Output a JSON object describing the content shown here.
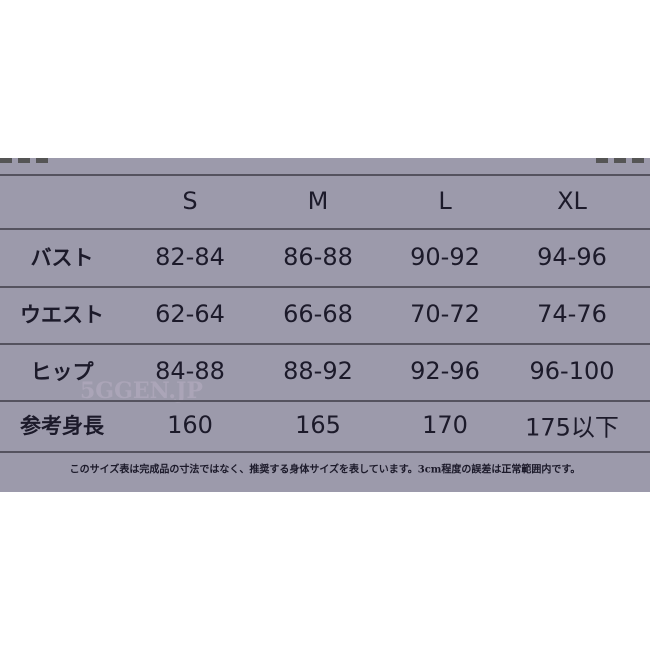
{
  "columns": [
    "S",
    "M",
    "L",
    "XL"
  ],
  "rows": [
    {
      "label": "バスト",
      "values": [
        "82-84",
        "86-88",
        "90-92",
        "94-96"
      ]
    },
    {
      "label": "ウエスト",
      "values": [
        "62-64",
        "66-68",
        "70-72",
        "74-76"
      ]
    },
    {
      "label": "ヒップ",
      "values": [
        "84-88",
        "88-92",
        "92-96",
        "96-100"
      ]
    },
    {
      "label": "参考身長",
      "values": [
        "160",
        "165",
        "170",
        "175以下"
      ]
    }
  ],
  "note": "このサイズ表は完成品の寸法ではなく、推奨する身体サイズを表しています。3cm程度の誤差は正常範囲内です。",
  "watermark": "5GGEN.JP",
  "colors": {
    "background": "#9c9aab",
    "text": "#1c1a2a"
  }
}
